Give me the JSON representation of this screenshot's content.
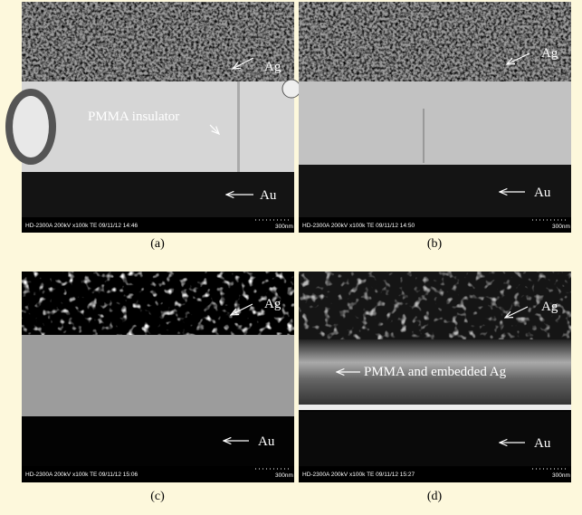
{
  "panels": [
    {
      "caption": "(a)",
      "info": "HD-2300A 200kV x100k TE 09/11/12 14:46",
      "scale": "300nm",
      "labels": [
        "Ag",
        "PMMA insulator",
        "Au"
      ]
    },
    {
      "caption": "(b)",
      "info": "HD-2300A 200kV x100k TE 09/11/12 14:50",
      "scale": "300nm",
      "labels": [
        "Ag",
        "Au"
      ]
    },
    {
      "caption": "(c)",
      "info": "HD-2300A 200kV x100k TE 09/11/12 15:06",
      "scale": "300nm",
      "labels": [
        "Ag",
        "Au"
      ]
    },
    {
      "caption": "(d)",
      "info": "HD-2300A 200kV x100k TE 09/11/12 15:27",
      "scale": "300nm",
      "labels": [
        "Ag",
        "PMMA and embedded Ag",
        "Au"
      ]
    }
  ]
}
